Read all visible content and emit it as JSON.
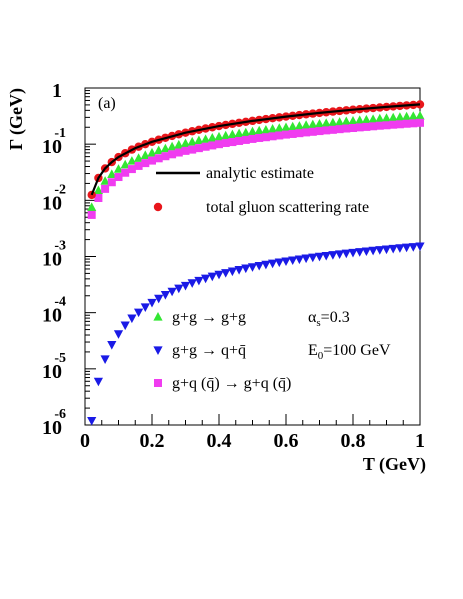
{
  "chart_data": {
    "type": "scatter",
    "panel_label": "(a)",
    "xlabel": "T (GeV)",
    "ylabel": "Γ (GeV)",
    "xlim": [
      0,
      1.0
    ],
    "ylim": [
      1e-06,
      1.0
    ],
    "yscale": "log",
    "x_ticks": [
      "0",
      "0.2",
      "0.4",
      "0.6",
      "0.8",
      "1"
    ],
    "y_ticks": [
      {
        "base": "1",
        "exp": ""
      },
      {
        "base": "10",
        "exp": "-1"
      },
      {
        "base": "10",
        "exp": "-2"
      },
      {
        "base": "10",
        "exp": "-3"
      },
      {
        "base": "10",
        "exp": "-4"
      },
      {
        "base": "10",
        "exp": "-5"
      },
      {
        "base": "10",
        "exp": "-6"
      }
    ],
    "y_tick_values": [
      1,
      0.1,
      0.01,
      0.001,
      0.0001,
      1e-05,
      1e-06
    ],
    "legend_top": [
      {
        "label": "analytic estimate",
        "marker": "line",
        "color": "#000000"
      },
      {
        "label": "total gluon scattering rate",
        "marker": "circle",
        "color": "#e8161b"
      }
    ],
    "legend_bottom": [
      {
        "label": "g+g → g+g",
        "marker": "triangle-up",
        "color": "#33e633"
      },
      {
        "label": "g+g → q+q̄",
        "marker": "triangle-down",
        "color": "#1a1ae6"
      },
      {
        "label": "g+q (q̄) → g+q (q̄)",
        "marker": "square",
        "color": "#f03cf0"
      }
    ],
    "params": [
      "αs=0.3",
      "E0=100 GeV"
    ],
    "series": [
      {
        "name": "analytic estimate",
        "marker": "line",
        "color": "#000000",
        "x": [
          0.02,
          0.04,
          0.06,
          0.08,
          0.1,
          0.15,
          0.2,
          0.3,
          0.4,
          0.5,
          0.6,
          0.7,
          0.8,
          0.9,
          1.0
        ],
        "y": [
          0.0125,
          0.025,
          0.037,
          0.048,
          0.059,
          0.085,
          0.11,
          0.16,
          0.21,
          0.26,
          0.31,
          0.36,
          0.41,
          0.46,
          0.51
        ]
      },
      {
        "name": "total gluon scattering rate",
        "marker": "circle",
        "color": "#e8161b",
        "x": [
          0.02,
          0.04,
          0.06,
          0.08,
          0.1,
          0.12,
          0.14,
          0.16,
          0.18,
          0.2,
          0.22,
          0.24,
          0.26,
          0.28,
          0.3,
          0.32,
          0.34,
          0.36,
          0.38,
          0.4,
          0.42,
          0.44,
          0.46,
          0.48,
          0.5,
          0.52,
          0.54,
          0.56,
          0.58,
          0.6,
          0.62,
          0.64,
          0.66,
          0.68,
          0.7,
          0.72,
          0.74,
          0.76,
          0.78,
          0.8,
          0.82,
          0.84,
          0.86,
          0.88,
          0.9,
          0.92,
          0.94,
          0.96,
          0.98,
          1.0
        ],
        "y": [
          0.0125,
          0.025,
          0.037,
          0.048,
          0.059,
          0.069,
          0.08,
          0.09,
          0.1,
          0.11,
          0.12,
          0.13,
          0.14,
          0.15,
          0.16,
          0.17,
          0.18,
          0.19,
          0.2,
          0.21,
          0.22,
          0.23,
          0.24,
          0.25,
          0.26,
          0.27,
          0.28,
          0.29,
          0.3,
          0.31,
          0.32,
          0.33,
          0.34,
          0.35,
          0.36,
          0.37,
          0.38,
          0.39,
          0.4,
          0.41,
          0.42,
          0.43,
          0.44,
          0.45,
          0.46,
          0.47,
          0.48,
          0.49,
          0.5,
          0.51
        ]
      },
      {
        "name": "g+g → g+g",
        "marker": "triangle-up",
        "color": "#33e633",
        "x": [
          0.02,
          0.04,
          0.06,
          0.08,
          0.1,
          0.12,
          0.14,
          0.16,
          0.18,
          0.2,
          0.22,
          0.24,
          0.26,
          0.28,
          0.3,
          0.32,
          0.34,
          0.36,
          0.38,
          0.4,
          0.42,
          0.44,
          0.46,
          0.48,
          0.5,
          0.52,
          0.54,
          0.56,
          0.58,
          0.6,
          0.62,
          0.64,
          0.66,
          0.68,
          0.7,
          0.72,
          0.74,
          0.76,
          0.78,
          0.8,
          0.82,
          0.84,
          0.86,
          0.88,
          0.9,
          0.92,
          0.94,
          0.96,
          0.98,
          1.0
        ],
        "y": [
          0.0075,
          0.015,
          0.022,
          0.029,
          0.036,
          0.043,
          0.05,
          0.056,
          0.063,
          0.07,
          0.077,
          0.083,
          0.09,
          0.097,
          0.103,
          0.11,
          0.116,
          0.122,
          0.129,
          0.135,
          0.141,
          0.148,
          0.154,
          0.16,
          0.167,
          0.173,
          0.179,
          0.186,
          0.192,
          0.198,
          0.204,
          0.21,
          0.217,
          0.223,
          0.229,
          0.235,
          0.241,
          0.247,
          0.253,
          0.259,
          0.265,
          0.271,
          0.277,
          0.283,
          0.289,
          0.295,
          0.301,
          0.307,
          0.313,
          0.319
        ]
      },
      {
        "name": "g+q (q̄) → g+q (q̄)",
        "marker": "square",
        "color": "#f03cf0",
        "x": [
          0.02,
          0.04,
          0.06,
          0.08,
          0.1,
          0.12,
          0.14,
          0.16,
          0.18,
          0.2,
          0.22,
          0.24,
          0.26,
          0.28,
          0.3,
          0.32,
          0.34,
          0.36,
          0.38,
          0.4,
          0.42,
          0.44,
          0.46,
          0.48,
          0.5,
          0.52,
          0.54,
          0.56,
          0.58,
          0.6,
          0.62,
          0.64,
          0.66,
          0.68,
          0.7,
          0.72,
          0.74,
          0.76,
          0.78,
          0.8,
          0.82,
          0.84,
          0.86,
          0.88,
          0.9,
          0.92,
          0.94,
          0.96,
          0.98,
          1.0
        ],
        "y": [
          0.0055,
          0.011,
          0.016,
          0.021,
          0.026,
          0.031,
          0.036,
          0.041,
          0.046,
          0.051,
          0.056,
          0.061,
          0.066,
          0.071,
          0.076,
          0.08,
          0.085,
          0.09,
          0.095,
          0.1,
          0.105,
          0.109,
          0.114,
          0.119,
          0.124,
          0.129,
          0.133,
          0.138,
          0.143,
          0.148,
          0.152,
          0.157,
          0.162,
          0.166,
          0.171,
          0.176,
          0.18,
          0.185,
          0.19,
          0.194,
          0.199,
          0.203,
          0.208,
          0.213,
          0.217,
          0.222,
          0.226,
          0.231,
          0.235,
          0.24
        ]
      },
      {
        "name": "g+g → q+q̄",
        "marker": "triangle-down",
        "color": "#1a1ae6",
        "x": [
          0.02,
          0.04,
          0.06,
          0.08,
          0.1,
          0.12,
          0.14,
          0.16,
          0.18,
          0.2,
          0.22,
          0.24,
          0.26,
          0.28,
          0.3,
          0.32,
          0.34,
          0.36,
          0.38,
          0.4,
          0.42,
          0.44,
          0.46,
          0.48,
          0.5,
          0.52,
          0.54,
          0.56,
          0.58,
          0.6,
          0.62,
          0.64,
          0.66,
          0.68,
          0.7,
          0.72,
          0.74,
          0.76,
          0.78,
          0.8,
          0.82,
          0.84,
          0.86,
          0.88,
          0.9,
          0.92,
          0.94,
          0.96,
          0.98,
          1.0
        ],
        "y": [
          1.2e-06,
          6e-06,
          1.5e-05,
          2.7e-05,
          4.2e-05,
          6e-05,
          8e-05,
          0.000102,
          0.000126,
          0.000152,
          0.00018,
          0.00021,
          0.00024,
          0.000272,
          0.000305,
          0.00034,
          0.000375,
          0.00041,
          0.000445,
          0.00048,
          0.000515,
          0.00055,
          0.000585,
          0.00062,
          0.000655,
          0.00069,
          0.000725,
          0.00076,
          0.000795,
          0.00083,
          0.000865,
          0.0009,
          0.000935,
          0.00097,
          0.001005,
          0.00104,
          0.001075,
          0.00111,
          0.001145,
          0.00118,
          0.001215,
          0.00125,
          0.001285,
          0.00132,
          0.001355,
          0.00139,
          0.001425,
          0.00146,
          0.001495,
          0.00153
        ]
      }
    ]
  }
}
